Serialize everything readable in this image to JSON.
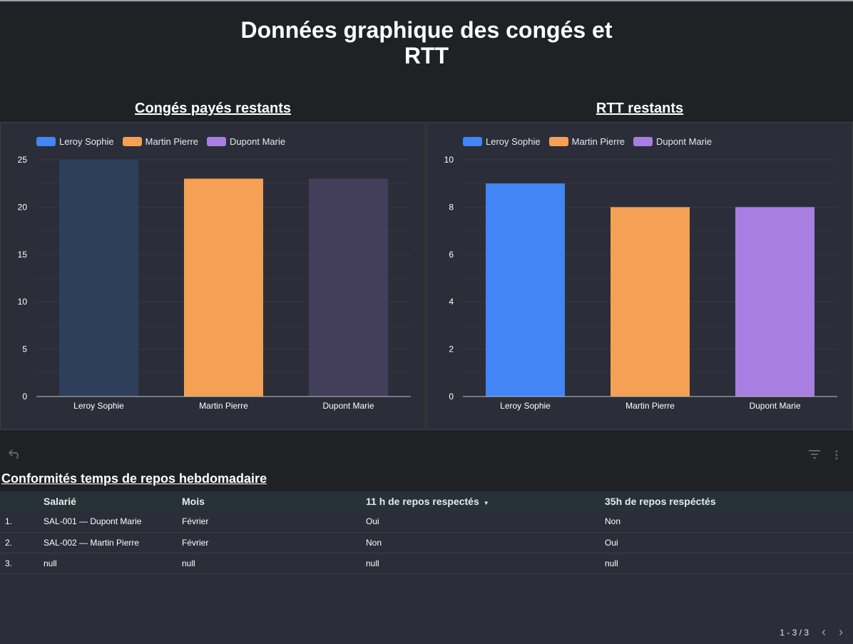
{
  "page": {
    "title_line1": "Données graphique des congés et",
    "title_line2": "RTT"
  },
  "charts": {
    "left_title": "Congés payés restants",
    "right_title": "RTT restants"
  },
  "chart_data": [
    {
      "type": "bar",
      "title": "Congés payés restants",
      "categories": [
        "Leroy Sophie",
        "Martin Pierre",
        "Dupont Marie"
      ],
      "series": [
        {
          "name": "Leroy Sophie",
          "color": "#4285f4"
        },
        {
          "name": "Martin Pierre",
          "color": "#f4a055"
        },
        {
          "name": "Dupont Marie",
          "color": "#a97ee2"
        }
      ],
      "values": [
        25,
        23,
        23
      ],
      "bar_colors": [
        "#2e3f5c",
        "#f4a055",
        "#433e5a"
      ],
      "ylim": [
        0,
        25
      ],
      "yticks": [
        0,
        5,
        10,
        15,
        20,
        25
      ],
      "legend": "top-left",
      "grid": true
    },
    {
      "type": "bar",
      "title": "RTT restants",
      "categories": [
        "Leroy Sophie",
        "Martin Pierre",
        "Dupont Marie"
      ],
      "series": [
        {
          "name": "Leroy Sophie",
          "color": "#4285f4"
        },
        {
          "name": "Martin Pierre",
          "color": "#f4a055"
        },
        {
          "name": "Dupont Marie",
          "color": "#a97ee2"
        }
      ],
      "values": [
        9,
        8,
        8
      ],
      "bar_colors": [
        "#4285f4",
        "#f4a055",
        "#a97ee2"
      ],
      "ylim": [
        0,
        10
      ],
      "yticks": [
        0,
        2,
        4,
        6,
        8,
        10
      ],
      "legend": "top-left",
      "grid": true
    }
  ],
  "toolbar": {
    "undo_icon": "undo-icon",
    "filter_icon": "filter-icon",
    "more_icon": "more-vert-icon"
  },
  "table": {
    "title": "Conformités temps de repos hebdomadaire",
    "headers": [
      "Salarié",
      "Mois",
      "11 h de repos respectés",
      "35h de repos respéctés"
    ],
    "rows": [
      {
        "index": "1.",
        "cells": [
          "SAL-001 — Dupont Marie",
          "Février",
          "Oui",
          "Non"
        ]
      },
      {
        "index": "2.",
        "cells": [
          "SAL-002 — Martin Pierre",
          "Février",
          "Non",
          "Oui"
        ]
      },
      {
        "index": "3.",
        "cells": [
          "null",
          "null",
          "null",
          "null"
        ]
      }
    ],
    "pagination": "1 - 3 / 3"
  }
}
